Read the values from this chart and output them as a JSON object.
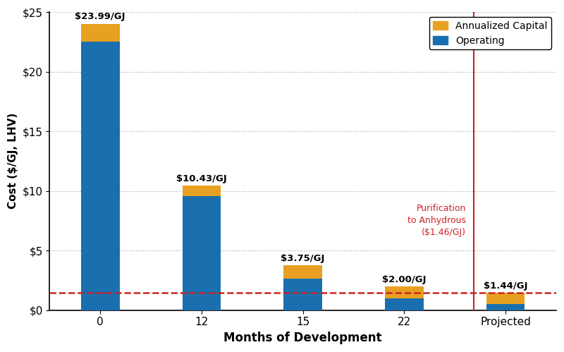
{
  "categories": [
    "0",
    "12",
    "15",
    "22",
    "Projected"
  ],
  "operating": [
    22.5,
    9.55,
    2.65,
    1.0,
    0.52
  ],
  "capital": [
    1.49,
    0.88,
    1.1,
    1.0,
    0.92
  ],
  "total_labels": [
    "$23.99/GJ",
    "$10.43/GJ",
    "$3.75/GJ",
    "$2.00/GJ",
    "$1.44/GJ"
  ],
  "bar_color_operating": "#1a6faf",
  "bar_color_capital": "#e8a020",
  "dashed_line_y": 1.46,
  "dashed_line_color": "#cc2222",
  "vline_color": "#cc2222",
  "annotation_text": "Purification\nto Anhydrous\n($1.46/GJ)",
  "annotation_color": "#cc2222",
  "xlabel": "Months of Development",
  "ylabel": "Cost ($/GJ, LHV)",
  "ylim": [
    0,
    25
  ],
  "yticks": [
    0,
    5,
    10,
    15,
    20,
    25
  ],
  "ytick_labels": [
    "$0",
    "$5",
    "$10",
    "$15",
    "$20",
    "$25"
  ],
  "legend_labels": [
    "Annualized Capital",
    "Operating"
  ],
  "bar_width": 0.38,
  "figsize": [
    8.0,
    4.99
  ],
  "dpi": 100
}
